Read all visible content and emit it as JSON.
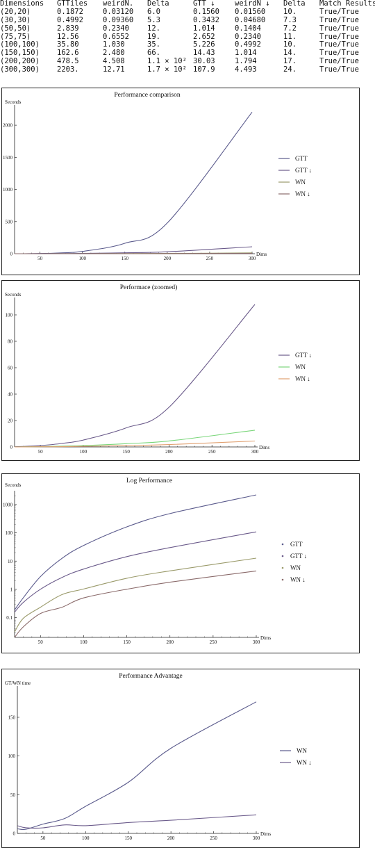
{
  "table": {
    "headers": [
      "Dimensions",
      "GTTiles",
      "weirdN.",
      "Delta",
      "GTT ↓",
      "weirdN ↓",
      "Delta",
      "Match Results"
    ],
    "rows": [
      [
        "(20,20)",
        "0.1872",
        "0.03120",
        "6.0",
        "0.1560",
        "0.01560",
        "10.",
        "True/True"
      ],
      [
        "(30,30)",
        "0.4992",
        "0.09360",
        "5.3",
        "0.3432",
        "0.04680",
        "7.3",
        "True/True"
      ],
      [
        "(50,50)",
        "2.839",
        "0.2340",
        "12.",
        "1.014",
        "0.1404",
        "7.2",
        "True/True"
      ],
      [
        "(75,75)",
        "12.56",
        "0.6552",
        "19.",
        "2.652",
        "0.2340",
        "11.",
        "True/True"
      ],
      [
        "(100,100)",
        "35.80",
        "1.030",
        "35.",
        "5.226",
        "0.4992",
        "10.",
        "True/True"
      ],
      [
        "(150,150)",
        "162.6",
        "2.480",
        "66.",
        "14.43",
        "1.014",
        "14.",
        "True/True"
      ],
      [
        "(200,200)",
        "478.5",
        "4.508",
        "1.1 × 10²",
        "30.03",
        "1.794",
        "17.",
        "True/True"
      ],
      [
        "(300,300)",
        "2203.",
        "12.71",
        "1.7 × 10²",
        "107.9",
        "4.493",
        "24.",
        "True/True"
      ]
    ]
  },
  "chart_data": [
    {
      "type": "line",
      "title": "Performance comparison",
      "xlabel": "Dims",
      "ylabel": "Seconds",
      "xlim": [
        20,
        300
      ],
      "ylim": [
        0,
        2250
      ],
      "xticks": [
        50,
        100,
        150,
        200,
        250,
        300
      ],
      "yticks": [
        0,
        500,
        1000,
        1500,
        2000
      ],
      "grid": false,
      "legend_position": "right",
      "x": [
        20,
        30,
        50,
        75,
        100,
        150,
        200,
        300
      ],
      "series": [
        {
          "name": "GTT",
          "color": "#5a5a8c",
          "values": [
            0.1872,
            0.4992,
            2.839,
            12.56,
            35.8,
            162.6,
            478.5,
            2203
          ]
        },
        {
          "name": "GTT ↓",
          "color": "#6a5a8a",
          "values": [
            0.156,
            0.3432,
            1.014,
            2.652,
            5.226,
            14.43,
            30.03,
            107.9
          ]
        },
        {
          "name": "WN",
          "color": "#9a9a6a",
          "values": [
            0.0312,
            0.0936,
            0.234,
            0.6552,
            1.03,
            2.48,
            4.508,
            12.71
          ]
        },
        {
          "name": "WN ↓",
          "color": "#8a6a6a",
          "values": [
            0.0156,
            0.0468,
            0.1404,
            0.234,
            0.4992,
            1.014,
            1.794,
            4.493
          ]
        }
      ]
    },
    {
      "type": "line",
      "title": "Performace (zoomed)",
      "xlabel": "Dims",
      "ylabel": "Seconds",
      "xlim": [
        20,
        300
      ],
      "ylim": [
        0,
        110
      ],
      "xticks": [
        50,
        100,
        150,
        200,
        250,
        300
      ],
      "yticks": [
        0,
        20,
        40,
        60,
        80,
        100
      ],
      "grid": false,
      "legend_position": "right",
      "x": [
        20,
        30,
        50,
        75,
        100,
        150,
        200,
        300
      ],
      "series": [
        {
          "name": "GTT ↓",
          "color": "#6a5a8a",
          "values": [
            0.156,
            0.3432,
            1.014,
            2.652,
            5.226,
            14.43,
            30.03,
            107.9
          ]
        },
        {
          "name": "WN",
          "color": "#7ad67a",
          "values": [
            0.0312,
            0.0936,
            0.234,
            0.6552,
            1.03,
            2.48,
            4.508,
            12.71
          ]
        },
        {
          "name": "WN ↓",
          "color": "#e0a070",
          "values": [
            0.0156,
            0.0468,
            0.1404,
            0.234,
            0.4992,
            1.014,
            1.794,
            4.493
          ]
        }
      ]
    },
    {
      "type": "line",
      "title": "Log Performance",
      "xlabel": "Dims",
      "ylabel": "Seconds",
      "yscale": "log",
      "xlim": [
        20,
        300
      ],
      "ylim": [
        0.02,
        2200
      ],
      "xticks": [
        50,
        100,
        150,
        200,
        250,
        300
      ],
      "yticks": [
        0.1,
        1,
        10,
        100,
        1000
      ],
      "grid": false,
      "legend_position": "right",
      "x": [
        20,
        30,
        50,
        75,
        100,
        150,
        200,
        300
      ],
      "series": [
        {
          "name": "GTT",
          "color": "#5a5a8c",
          "values": [
            0.1872,
            0.4992,
            2.839,
            12.56,
            35.8,
            162.6,
            478.5,
            2203
          ]
        },
        {
          "name": "GTT ↓",
          "color": "#6a5a8a",
          "values": [
            0.156,
            0.3432,
            1.014,
            2.652,
            5.226,
            14.43,
            30.03,
            107.9
          ]
        },
        {
          "name": "WN",
          "color": "#9a9a6a",
          "values": [
            0.0312,
            0.0936,
            0.234,
            0.6552,
            1.03,
            2.48,
            4.508,
            12.71
          ]
        },
        {
          "name": "WN ↓",
          "color": "#8a6a6a",
          "values": [
            0.0156,
            0.0468,
            0.1404,
            0.234,
            0.4992,
            1.014,
            1.794,
            4.493
          ]
        }
      ]
    },
    {
      "type": "line",
      "title": "Performance Advantage",
      "xlabel": "Dims",
      "ylabel": "GT/WN time",
      "xlim": [
        20,
        300
      ],
      "ylim": [
        0,
        185
      ],
      "xticks": [
        50,
        100,
        150,
        200,
        250,
        300
      ],
      "yticks": [
        0,
        50,
        100,
        150
      ],
      "grid": false,
      "legend_position": "right",
      "x": [
        20,
        30,
        50,
        75,
        100,
        150,
        200,
        300
      ],
      "series": [
        {
          "name": "WN",
          "color": "#5a5a8c",
          "values": [
            6.0,
            5.3,
            12,
            19,
            35,
            66,
            110,
            170
          ]
        },
        {
          "name": "WN ↓",
          "color": "#6a5a8a",
          "values": [
            10,
            7.3,
            7.2,
            11,
            10,
            14,
            17,
            24
          ]
        }
      ]
    }
  ]
}
